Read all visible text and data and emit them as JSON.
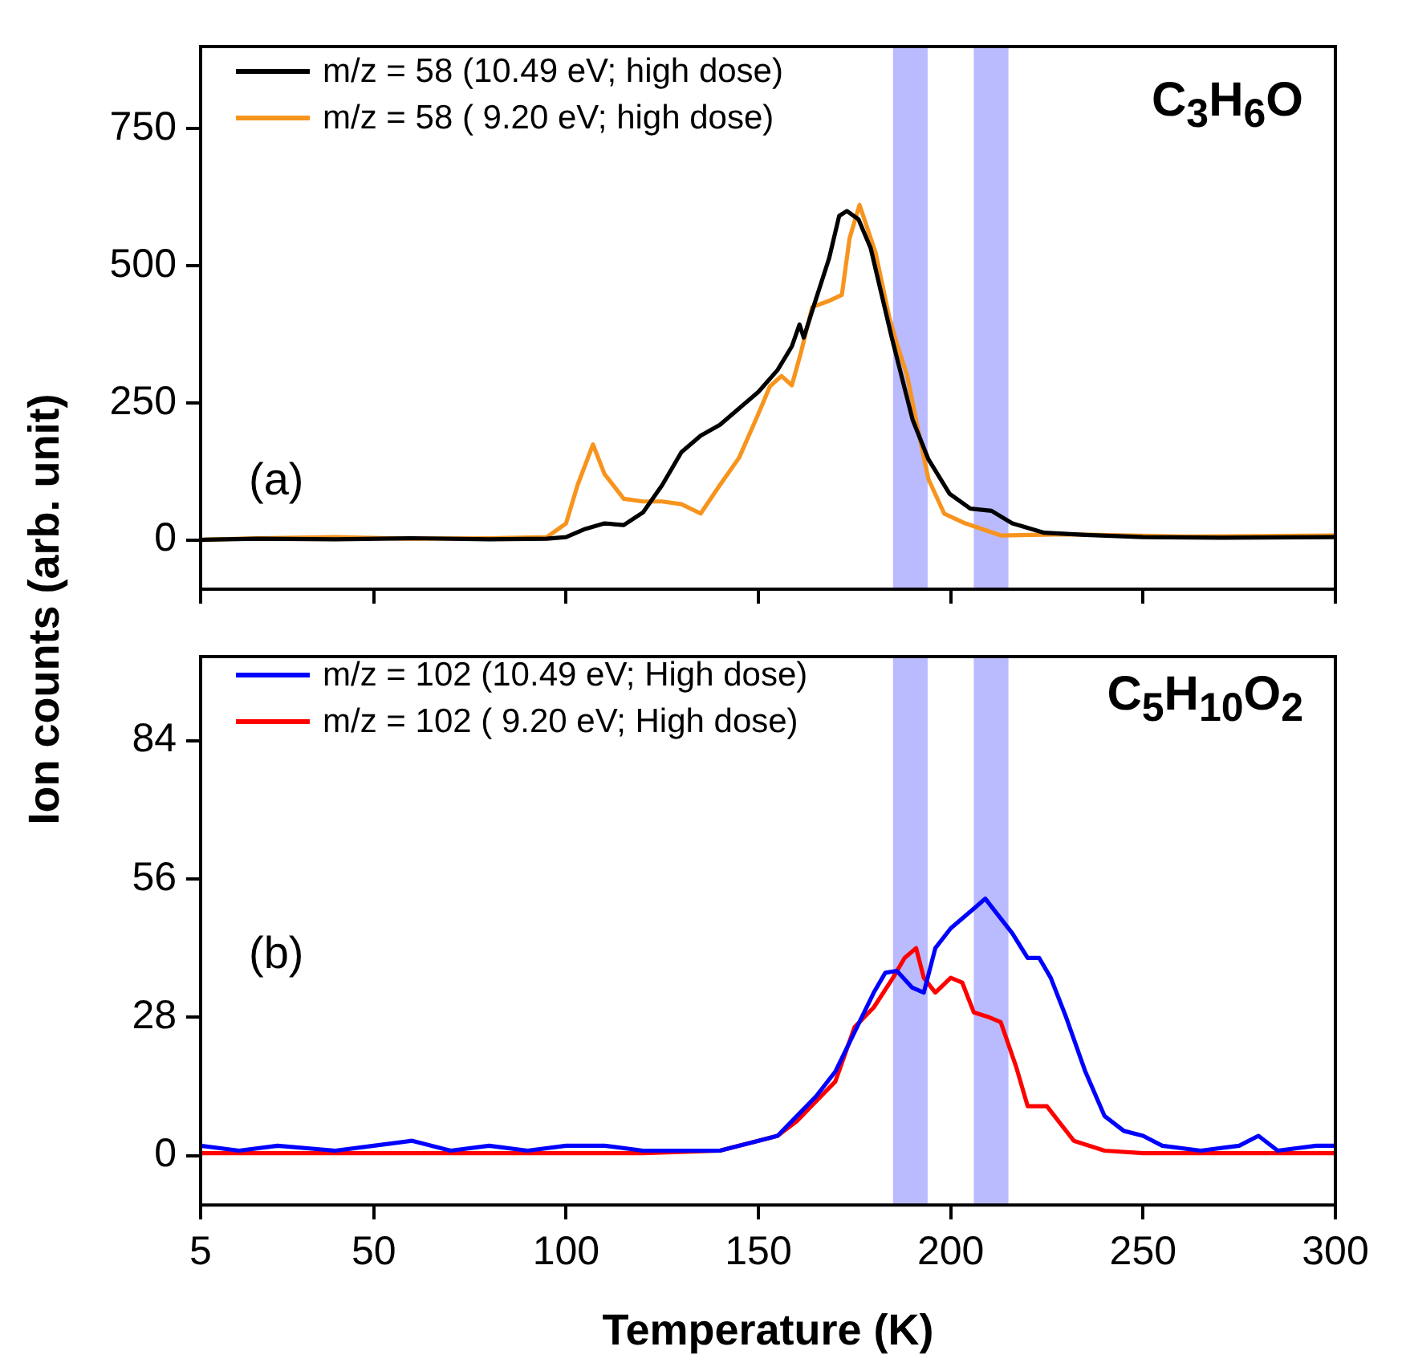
{
  "chart_data": [
    {
      "type": "line",
      "annotations": [
        "(a)",
        "C$_{3}$H$_{6}$O"
      ],
      "legend": "top left",
      "grid": false,
      "tick_labels": "y",
      "xlim": [
        5,
        300
      ],
      "xticks": [
        5,
        50,
        100,
        150,
        200,
        250,
        300
      ],
      "ylim": [
        -90,
        900
      ],
      "yticks": [
        0,
        250,
        500,
        750
      ],
      "bands": [
        {
          "axis": "x",
          "from": 185,
          "to": 194,
          "color": "#6666ff"
        },
        {
          "axis": "x",
          "from": 206,
          "to": 215,
          "color": "#6666ff"
        }
      ],
      "series": [
        {
          "name": "m/z = 58 (10.49 eV; high dose)",
          "color": "#000000",
          "x": [
            5,
            20,
            40,
            60,
            80,
            95,
            100,
            105,
            110,
            115,
            120,
            125,
            130,
            135,
            140,
            145,
            150,
            155,
            158.7,
            160.7,
            161.8,
            165,
            168.4,
            171,
            173,
            176,
            179.2,
            184.6,
            190.1,
            194.2,
            199.7,
            205.1,
            210.6,
            216,
            224.3,
            235,
            250,
            270,
            300
          ],
          "values": [
            0,
            2,
            1,
            3,
            1,
            2,
            5,
            20,
            30,
            27,
            50,
            100,
            160,
            190,
            210,
            240,
            270,
            310,
            353,
            393,
            369,
            440,
            514,
            591,
            600,
            585,
            532,
            371,
            219,
            147,
            84,
            57,
            53,
            30,
            13,
            9,
            5,
            4,
            5
          ]
        },
        {
          "name": "m/z = 58 ( 9.20 eV; high dose)",
          "color": "#f7941d",
          "x": [
            5,
            20,
            40,
            60,
            80,
            95,
            100,
            103,
            107,
            110,
            115,
            120,
            125,
            130,
            135,
            140,
            145,
            150,
            153,
            156,
            158.7,
            161,
            164,
            168,
            171.7,
            173.7,
            176.3,
            180.5,
            184,
            186,
            188.7,
            191.5,
            194.2,
            198.3,
            203.8,
            213,
            230,
            260,
            300
          ],
          "values": [
            0,
            3,
            5,
            2,
            3,
            5,
            30,
            100,
            174,
            120,
            75,
            70,
            70,
            65,
            48,
            100,
            150,
            230,
            280,
            299,
            282,
            340,
            425,
            435,
            447,
            550,
            611,
            523,
            407,
            358,
            299,
            201,
            111,
            48,
            30,
            8,
            10,
            6,
            8
          ]
        }
      ]
    },
    {
      "type": "line",
      "annotations": [
        "(b)",
        "C$_{5}$H$_{10}$O$_{2}$"
      ],
      "legend": "top left",
      "grid": false,
      "xlabel": "Temperature (K)",
      "ylabel": "Ion counts (arb. unit)",
      "xlim": [
        5,
        300
      ],
      "xticks": [
        5,
        50,
        100,
        150,
        200,
        250,
        300
      ],
      "ylim": [
        -10,
        101
      ],
      "yticks": [
        0,
        28,
        56,
        84
      ],
      "bands": [
        {
          "axis": "x",
          "from": 185,
          "to": 194,
          "color": "#6666ff"
        },
        {
          "axis": "x",
          "from": 206,
          "to": 215,
          "color": "#6666ff"
        }
      ],
      "series": [
        {
          "name": "m/z = 102 (10.49 eV; High dose)",
          "color": "#0000ff",
          "x": [
            5,
            15,
            25,
            40,
            50,
            60,
            70,
            80,
            90,
            100,
            110,
            120,
            130,
            140,
            150,
            155,
            160,
            165,
            170,
            175,
            180,
            183,
            186,
            190,
            193,
            196,
            200,
            203,
            206,
            209,
            212,
            216,
            220,
            223,
            226,
            230,
            235,
            240,
            245,
            250,
            255,
            265,
            275,
            280,
            285,
            295,
            300
          ],
          "values": [
            2,
            1,
            2,
            1,
            2,
            3,
            1,
            2,
            1,
            2,
            2,
            1,
            1,
            1,
            3,
            4,
            8,
            12,
            17,
            25,
            33,
            37,
            37.4,
            34,
            33,
            42,
            46,
            48,
            50,
            52,
            49,
            45,
            40,
            40,
            36,
            28,
            17,
            8,
            5,
            4,
            2,
            1,
            2,
            4,
            1,
            2,
            2
          ]
        },
        {
          "name": "m/z = 102 ( 9.20 eV; High dose)",
          "color": "#ff0000",
          "x": [
            5,
            20,
            40,
            60,
            80,
            100,
            120,
            140,
            145,
            150,
            155,
            160,
            165,
            170,
            175,
            180,
            185,
            188,
            191,
            193,
            196,
            200,
            203,
            206,
            210,
            213,
            217,
            220,
            225,
            228,
            232,
            240,
            250,
            270,
            300
          ],
          "values": [
            0.5,
            0.5,
            0.5,
            0.5,
            0.5,
            0.5,
            0.5,
            1,
            2,
            3,
            4,
            7,
            11,
            15,
            26,
            30,
            36,
            40,
            42,
            36,
            33,
            36,
            35,
            29,
            28,
            27,
            18,
            10,
            10,
            7,
            3,
            1,
            0.5,
            0.5,
            0.5
          ]
        }
      ]
    }
  ]
}
